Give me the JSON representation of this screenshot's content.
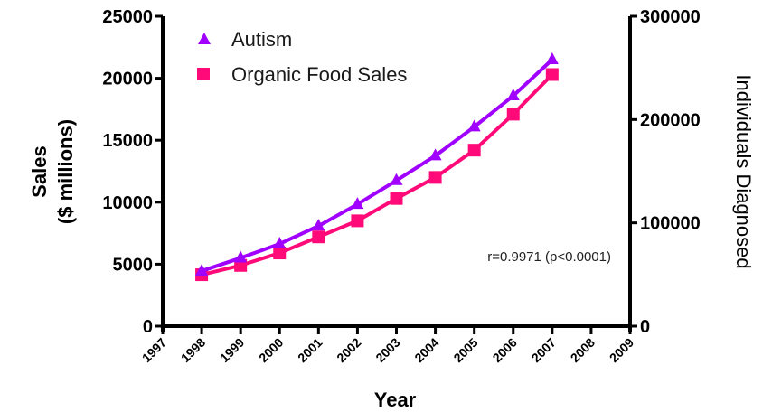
{
  "chart_data": {
    "type": "line",
    "title": "",
    "xlabel": "Year",
    "ylabel": "Sales ($ millions)",
    "ylabel_lines": [
      "Sales",
      "($ millions)"
    ],
    "y2label": "Individuals Diagnosed",
    "xlim": [
      1997,
      2009
    ],
    "ylim": [
      0,
      25000
    ],
    "y2lim": [
      0,
      300000
    ],
    "x_ticks": [
      "1997",
      "1998",
      "1999",
      "2000",
      "2001",
      "2002",
      "2003",
      "2004",
      "2005",
      "2006",
      "2007",
      "2008",
      "2009"
    ],
    "y_ticks": [
      "0",
      "5000",
      "10000",
      "15000",
      "20000",
      "25000"
    ],
    "y2_ticks": [
      "0",
      "100000",
      "200000",
      "300000"
    ],
    "grid": false,
    "legend_position": "top-left",
    "series": [
      {
        "name": "Autism",
        "axis": "right",
        "marker": "triangle",
        "color": "#a000ff",
        "x": [
          1998,
          1999,
          2000,
          2001,
          2002,
          2003,
          2004,
          2005,
          2006,
          2007
        ],
        "values": [
          53400,
          66000,
          79600,
          97000,
          118000,
          141000,
          165000,
          193000,
          223000,
          258000
        ]
      },
      {
        "name": "Organic Food Sales",
        "axis": "left",
        "marker": "square",
        "color": "#ff0a78",
        "x": [
          1998,
          1999,
          2000,
          2001,
          2002,
          2003,
          2004,
          2005,
          2006,
          2007
        ],
        "values": [
          4150,
          4900,
          5900,
          7200,
          8500,
          10300,
          12000,
          14200,
          17100,
          20300
        ]
      }
    ],
    "annotations": [
      "r=0.9971 (p<0.0001)"
    ]
  }
}
